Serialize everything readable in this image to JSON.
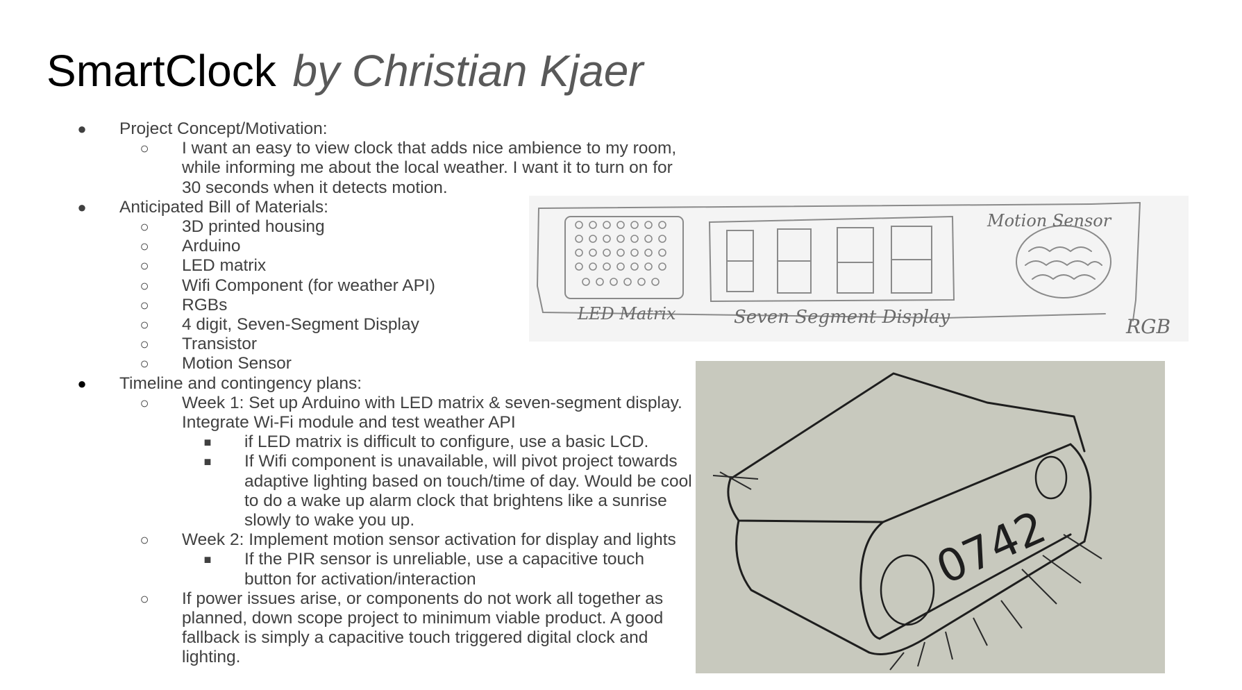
{
  "slide": {
    "title": "SmartClock",
    "title_by": "by Christian Kjaer"
  },
  "outline": {
    "concept_heading": "Project Concept/Motivation:",
    "concept_text": "I want an easy to view clock that adds nice ambience to my room, while informing me about the local weather. I want it to turn on for 30 seconds when it detects motion.",
    "materials_heading": "Anticipated Bill of Materials:",
    "materials": [
      "3D printed housing",
      "Arduino",
      "LED matrix",
      "Wifi Component (for weather API)",
      "RGBs",
      "4 digit, Seven-Segment Display",
      "Transistor",
      "Motion Sensor"
    ],
    "timeline_heading": "Timeline and contingency plans:",
    "week1": "Week 1: Set up Arduino with LED matrix & seven-segment display. Integrate Wi-Fi module and test weather API",
    "week1_plans": [
      "if LED matrix is difficult to configure, use a basic LCD.",
      "If Wifi component is unavailable, will pivot project towards adaptive lighting based on touch/time of day. Would be cool to do a wake up alarm clock that brightens like a sunrise slowly to wake you up."
    ],
    "week2": "Week 2: Implement motion sensor activation for display and lights",
    "week2_plans": [
      "If the PIR sensor is unreliable, use a capacitive touch button for activation/interaction"
    ],
    "fallback": "If power issues arise, or components do not work all together as planned, down scope project to minimum viable product. A good fallback is simply a capacitive touch triggered digital clock and lighting."
  },
  "sketch_front": {
    "label_led": "LED Matrix",
    "label_display": "Seven Segment Display",
    "label_sensor": "Motion Sensor",
    "label_rgb": "RGB"
  },
  "sketch_perspective": {
    "clock_digits": "0742"
  },
  "icons": {
    "level1": "filled-circle-bullet-icon",
    "level2": "hollow-circle-bullet-icon",
    "level3": "filled-square-bullet-icon"
  }
}
